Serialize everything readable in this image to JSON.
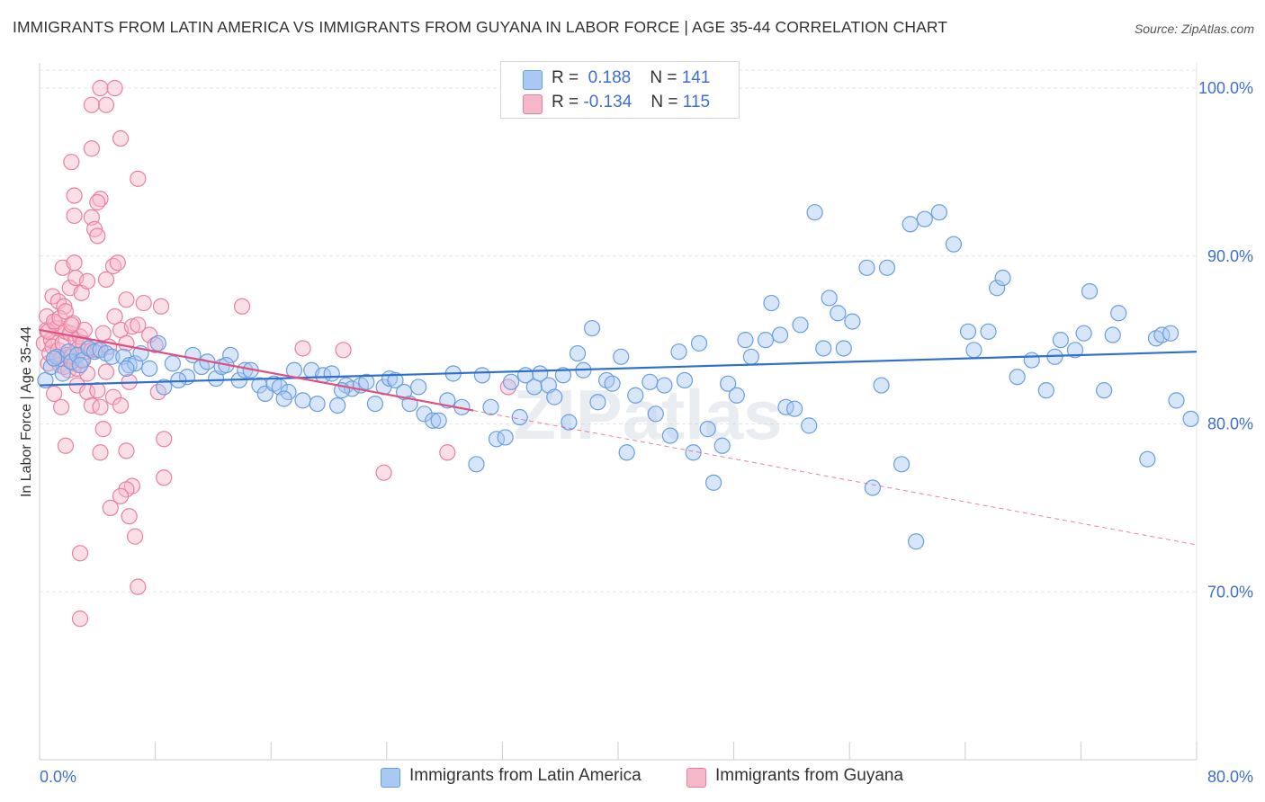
{
  "title": "IMMIGRANTS FROM LATIN AMERICA VS IMMIGRANTS FROM GUYANA IN LABOR FORCE | AGE 35-44 CORRELATION CHART",
  "source": "Source: ZipAtlas.com",
  "watermark": "ZIPatlas",
  "legend": {
    "rows": [
      {
        "r_label": "R =",
        "r_value": "0.188",
        "n_label": "N =",
        "n_value": "141"
      },
      {
        "r_label": "R =",
        "r_value": "-0.134",
        "n_label": "N =",
        "n_value": "115"
      }
    ]
  },
  "bottom_legend": [
    "Immigrants from Latin America",
    "Immigrants from Guyana"
  ],
  "colors": {
    "blue_fill": "#a9c8f2",
    "blue_stroke": "#6b9ee0",
    "blue_line": "#2f6fcf",
    "pink_fill": "#f6b7c9",
    "pink_stroke": "#ec7fa0",
    "pink_line": "#e0507e",
    "axis_label": "#3d6fd1",
    "grid": "#e6e6e6"
  },
  "chart_data": {
    "type": "scatter",
    "title": "IMMIGRANTS FROM LATIN AMERICA VS IMMIGRANTS FROM GUYANA IN LABOR FORCE | AGE 35-44 CORRELATION CHART",
    "xlabel": "",
    "ylabel": "In Labor Force | Age 35-44",
    "xlim": [
      0,
      80
    ],
    "ylim": [
      60,
      101.5
    ],
    "x_tick_labels": [
      "0.0%",
      "80.0%"
    ],
    "y_ticks": [
      70,
      80,
      90,
      100
    ],
    "y_tick_labels": [
      "70.0%",
      "80.0%",
      "90.0%",
      "100.0%"
    ],
    "grid": true,
    "series": [
      {
        "name": "Immigrants from Latin America",
        "r": 0.188,
        "n": 141,
        "trend": {
          "x": [
            0,
            80
          ],
          "y": [
            82.3,
            84.3
          ],
          "style": "solid"
        },
        "points": [
          [
            0.4,
            82.6
          ],
          [
            0.8,
            83.4
          ],
          [
            1.2,
            84.0
          ],
          [
            1.6,
            83.0
          ],
          [
            2.0,
            84.3
          ],
          [
            2.2,
            83.7
          ],
          [
            2.6,
            84.1
          ],
          [
            3.0,
            83.8
          ],
          [
            3.4,
            84.5
          ],
          [
            3.8,
            84.3
          ],
          [
            4.2,
            84.4
          ],
          [
            4.6,
            84.2
          ],
          [
            5.0,
            84.0
          ],
          [
            5.8,
            84.0
          ],
          [
            6.2,
            83.5
          ],
          [
            6.6,
            83.6
          ],
          [
            7.0,
            84.2
          ],
          [
            7.6,
            83.3
          ],
          [
            8.2,
            84.8
          ],
          [
            8.6,
            82.2
          ],
          [
            9.2,
            83.6
          ],
          [
            10.2,
            82.8
          ],
          [
            10.6,
            84.1
          ],
          [
            11.2,
            83.4
          ],
          [
            11.6,
            83.7
          ],
          [
            12.2,
            82.7
          ],
          [
            12.6,
            83.4
          ],
          [
            13.2,
            84.1
          ],
          [
            13.8,
            82.6
          ],
          [
            14.2,
            83.2
          ],
          [
            14.6,
            83.2
          ],
          [
            15.2,
            82.3
          ],
          [
            15.6,
            81.8
          ],
          [
            16.2,
            82.4
          ],
          [
            16.6,
            82.2
          ],
          [
            17.2,
            81.9
          ],
          [
            17.6,
            83.2
          ],
          [
            18.2,
            81.4
          ],
          [
            18.8,
            83.2
          ],
          [
            19.2,
            81.2
          ],
          [
            19.6,
            82.9
          ],
          [
            20.2,
            83.0
          ],
          [
            20.6,
            81.1
          ],
          [
            21.2,
            82.3
          ],
          [
            21.6,
            82.1
          ],
          [
            22.2,
            82.3
          ],
          [
            22.6,
            82.5
          ],
          [
            23.2,
            81.2
          ],
          [
            23.8,
            82.2
          ],
          [
            24.2,
            82.7
          ],
          [
            24.6,
            82.6
          ],
          [
            25.2,
            81.9
          ],
          [
            25.6,
            81.2
          ],
          [
            26.2,
            82.2
          ],
          [
            26.6,
            80.6
          ],
          [
            27.2,
            80.2
          ],
          [
            27.6,
            80.2
          ],
          [
            28.2,
            81.4
          ],
          [
            28.6,
            83.0
          ],
          [
            29.2,
            81.0
          ],
          [
            30.2,
            77.6
          ],
          [
            30.6,
            82.9
          ],
          [
            31.2,
            81.0
          ],
          [
            31.6,
            79.1
          ],
          [
            32.2,
            79.2
          ],
          [
            32.6,
            82.5
          ],
          [
            33.2,
            80.4
          ],
          [
            33.6,
            82.9
          ],
          [
            34.2,
            82.2
          ],
          [
            34.6,
            83.0
          ],
          [
            35.2,
            82.3
          ],
          [
            35.6,
            81.6
          ],
          [
            36.2,
            82.9
          ],
          [
            36.6,
            80.1
          ],
          [
            37.2,
            84.2
          ],
          [
            37.6,
            83.2
          ],
          [
            38.2,
            85.7
          ],
          [
            38.6,
            81.3
          ],
          [
            39.2,
            82.6
          ],
          [
            39.6,
            82.4
          ],
          [
            40.2,
            84.0
          ],
          [
            40.6,
            78.3
          ],
          [
            41.2,
            81.7
          ],
          [
            42.2,
            82.5
          ],
          [
            42.6,
            80.6
          ],
          [
            43.2,
            82.3
          ],
          [
            43.6,
            79.3
          ],
          [
            44.2,
            84.3
          ],
          [
            44.6,
            82.6
          ],
          [
            45.2,
            78.3
          ],
          [
            45.6,
            84.8
          ],
          [
            46.2,
            79.7
          ],
          [
            46.6,
            76.5
          ],
          [
            47.2,
            78.7
          ],
          [
            47.6,
            82.4
          ],
          [
            48.2,
            81.7
          ],
          [
            48.8,
            85.0
          ],
          [
            49.2,
            84.0
          ],
          [
            50.2,
            85.0
          ],
          [
            50.6,
            87.2
          ],
          [
            51.2,
            85.3
          ],
          [
            51.6,
            81.0
          ],
          [
            52.2,
            80.9
          ],
          [
            52.6,
            85.9
          ],
          [
            53.2,
            79.9
          ],
          [
            53.6,
            92.6
          ],
          [
            54.2,
            84.5
          ],
          [
            54.6,
            87.5
          ],
          [
            55.2,
            86.6
          ],
          [
            55.6,
            84.5
          ],
          [
            56.2,
            86.1
          ],
          [
            57.2,
            89.3
          ],
          [
            57.6,
            76.2
          ],
          [
            58.2,
            82.3
          ],
          [
            58.6,
            89.3
          ],
          [
            59.6,
            77.6
          ],
          [
            60.2,
            91.9
          ],
          [
            60.6,
            73.0
          ],
          [
            61.2,
            92.2
          ],
          [
            62.2,
            92.6
          ],
          [
            63.2,
            90.7
          ],
          [
            64.2,
            85.5
          ],
          [
            64.6,
            84.4
          ],
          [
            65.6,
            85.5
          ],
          [
            66.2,
            88.1
          ],
          [
            66.6,
            88.7
          ],
          [
            67.6,
            82.8
          ],
          [
            68.6,
            83.8
          ],
          [
            69.6,
            82.0
          ],
          [
            70.2,
            84.0
          ],
          [
            70.6,
            85.0
          ],
          [
            71.6,
            84.4
          ],
          [
            72.2,
            85.4
          ],
          [
            72.6,
            87.9
          ],
          [
            73.6,
            82.0
          ],
          [
            74.2,
            85.3
          ],
          [
            74.6,
            86.6
          ],
          [
            76.6,
            77.9
          ],
          [
            77.2,
            85.1
          ],
          [
            77.6,
            85.3
          ],
          [
            78.2,
            85.4
          ],
          [
            78.6,
            81.4
          ],
          [
            79.6,
            80.3
          ],
          [
            80.6,
            82.9
          ],
          [
            1.0,
            83.9
          ],
          [
            2.8,
            83.5
          ],
          [
            6.0,
            83.3
          ],
          [
            9.6,
            82.6
          ],
          [
            12.9,
            83.5
          ],
          [
            16.9,
            81.5
          ],
          [
            20.9,
            82.0
          ]
        ]
      },
      {
        "name": "Immigrants from Guyana",
        "r": -0.134,
        "n": 115,
        "trend": {
          "x_solid": [
            0,
            30
          ],
          "y_solid": [
            85.6,
            80.8
          ],
          "x_dashed": [
            30,
            80
          ],
          "y_dashed": [
            80.8,
            72.8
          ]
        },
        "points": [
          [
            0.3,
            84.8
          ],
          [
            0.5,
            85.6
          ],
          [
            0.6,
            83.6
          ],
          [
            0.7,
            84.2
          ],
          [
            0.8,
            85.0
          ],
          [
            0.9,
            84.6
          ],
          [
            1.0,
            83.9
          ],
          [
            1.1,
            86.0
          ],
          [
            1.2,
            85.7
          ],
          [
            1.3,
            84.4
          ],
          [
            1.4,
            83.5
          ],
          [
            1.5,
            83.9
          ],
          [
            1.6,
            84.8
          ],
          [
            1.7,
            83.4
          ],
          [
            1.8,
            85.5
          ],
          [
            1.9,
            84.1
          ],
          [
            2.0,
            83.2
          ],
          [
            2.1,
            85.4
          ],
          [
            2.2,
            84.0
          ],
          [
            2.3,
            86.0
          ],
          [
            2.4,
            83.6
          ],
          [
            2.5,
            85.0
          ],
          [
            2.6,
            83.3
          ],
          [
            2.7,
            84.5
          ],
          [
            2.8,
            85.2
          ],
          [
            2.9,
            83.8
          ],
          [
            3.0,
            84.8
          ],
          [
            3.1,
            85.6
          ],
          [
            3.2,
            84.3
          ],
          [
            3.3,
            83.0
          ],
          [
            0.5,
            86.4
          ],
          [
            0.9,
            87.6
          ],
          [
            1.3,
            87.3
          ],
          [
            1.7,
            87.0
          ],
          [
            2.1,
            88.1
          ],
          [
            2.5,
            88.7
          ],
          [
            2.9,
            87.8
          ],
          [
            3.3,
            88.5
          ],
          [
            1.6,
            89.3
          ],
          [
            2.4,
            89.6
          ],
          [
            0.6,
            85.5
          ],
          [
            1.0,
            86.1
          ],
          [
            1.4,
            86.3
          ],
          [
            1.8,
            86.7
          ],
          [
            2.2,
            85.9
          ],
          [
            3.6,
            84.4
          ],
          [
            4.0,
            84.4
          ],
          [
            4.4,
            85.4
          ],
          [
            4.8,
            84.6
          ],
          [
            5.2,
            86.4
          ],
          [
            5.6,
            85.6
          ],
          [
            6.0,
            84.8
          ],
          [
            6.4,
            85.8
          ],
          [
            6.8,
            85.9
          ],
          [
            7.2,
            87.2
          ],
          [
            7.6,
            85.3
          ],
          [
            8.0,
            84.7
          ],
          [
            8.4,
            87.0
          ],
          [
            4.6,
            88.6
          ],
          [
            5.1,
            89.4
          ],
          [
            5.4,
            89.6
          ],
          [
            6.0,
            87.4
          ],
          [
            1.0,
            81.8
          ],
          [
            1.5,
            81.0
          ],
          [
            2.6,
            82.3
          ],
          [
            3.3,
            81.9
          ],
          [
            3.6,
            81.1
          ],
          [
            4.0,
            82.0
          ],
          [
            4.6,
            83.1
          ],
          [
            5.1,
            81.6
          ],
          [
            5.6,
            81.1
          ],
          [
            4.2,
            81.0
          ],
          [
            6.2,
            82.5
          ],
          [
            8.2,
            81.9
          ],
          [
            4.4,
            79.7
          ],
          [
            6.0,
            78.4
          ],
          [
            4.2,
            78.3
          ],
          [
            1.8,
            78.7
          ],
          [
            8.6,
            79.1
          ],
          [
            6.4,
            76.3
          ],
          [
            6.0,
            76.1
          ],
          [
            8.6,
            76.8
          ],
          [
            5.6,
            75.7
          ],
          [
            4.9,
            75.0
          ],
          [
            6.6,
            73.3
          ],
          [
            6.2,
            74.5
          ],
          [
            2.8,
            72.3
          ],
          [
            6.8,
            70.3
          ],
          [
            2.8,
            68.4
          ],
          [
            21.0,
            84.4
          ],
          [
            18.2,
            84.5
          ],
          [
            23.8,
            77.1
          ],
          [
            28.2,
            78.3
          ],
          [
            32.4,
            82.2
          ],
          [
            4.6,
            99.0
          ],
          [
            4.2,
            100.0
          ],
          [
            5.2,
            100.0
          ],
          [
            3.6,
            99.0
          ],
          [
            5.6,
            97.0
          ],
          [
            6.8,
            94.6
          ],
          [
            3.6,
            96.4
          ],
          [
            2.2,
            95.6
          ],
          [
            4.2,
            93.4
          ],
          [
            4.0,
            93.2
          ],
          [
            2.4,
            92.4
          ],
          [
            3.6,
            92.3
          ],
          [
            3.8,
            91.6
          ],
          [
            4.0,
            91.2
          ],
          [
            2.4,
            93.6
          ],
          [
            14.0,
            87.0
          ]
        ]
      }
    ]
  }
}
